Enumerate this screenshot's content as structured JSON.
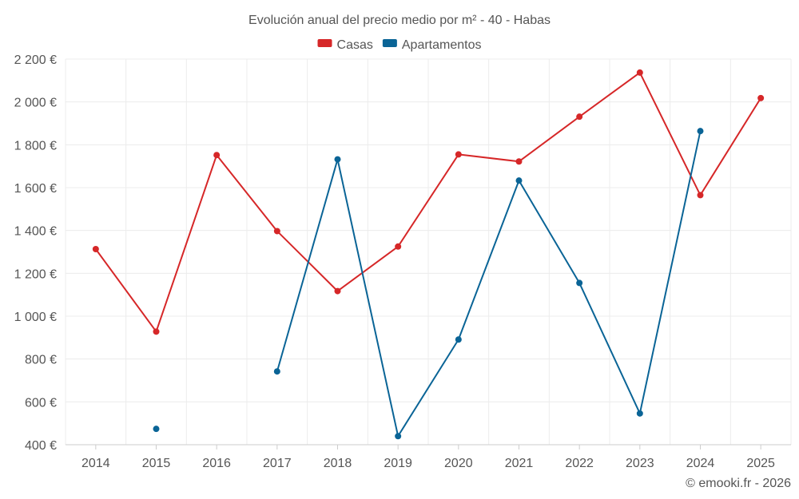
{
  "chart_data": {
    "type": "line",
    "title": "Evolución anual del precio medio por m² - 40 - Habas",
    "xlabel": "",
    "ylabel": "",
    "categories": [
      "2014",
      "2015",
      "2016",
      "2017",
      "2018",
      "2019",
      "2020",
      "2021",
      "2022",
      "2023",
      "2024",
      "2025"
    ],
    "ylim": [
      400,
      2200
    ],
    "yticks": [
      400,
      600,
      800,
      1000,
      1200,
      1400,
      1600,
      1800,
      2000,
      2200
    ],
    "ytick_labels": [
      "400 €",
      "600 €",
      "800 €",
      "1 000 €",
      "1 200 €",
      "1 400 €",
      "1 600 €",
      "1 800 €",
      "2 000 €",
      "2 200 €"
    ],
    "grid": true,
    "legend_position": "top-center",
    "series": [
      {
        "name": "Casas",
        "color": "#d62728",
        "values": [
          1313,
          928,
          1752,
          1397,
          1117,
          1325,
          1755,
          1722,
          1931,
          2137,
          1565,
          2018
        ]
      },
      {
        "name": "Apartamentos",
        "color": "#0a6496",
        "values": [
          null,
          474,
          null,
          742,
          1732,
          440,
          891,
          1633,
          1155,
          546,
          1864,
          null
        ]
      }
    ],
    "credit": "© emooki.fr - 2026"
  }
}
